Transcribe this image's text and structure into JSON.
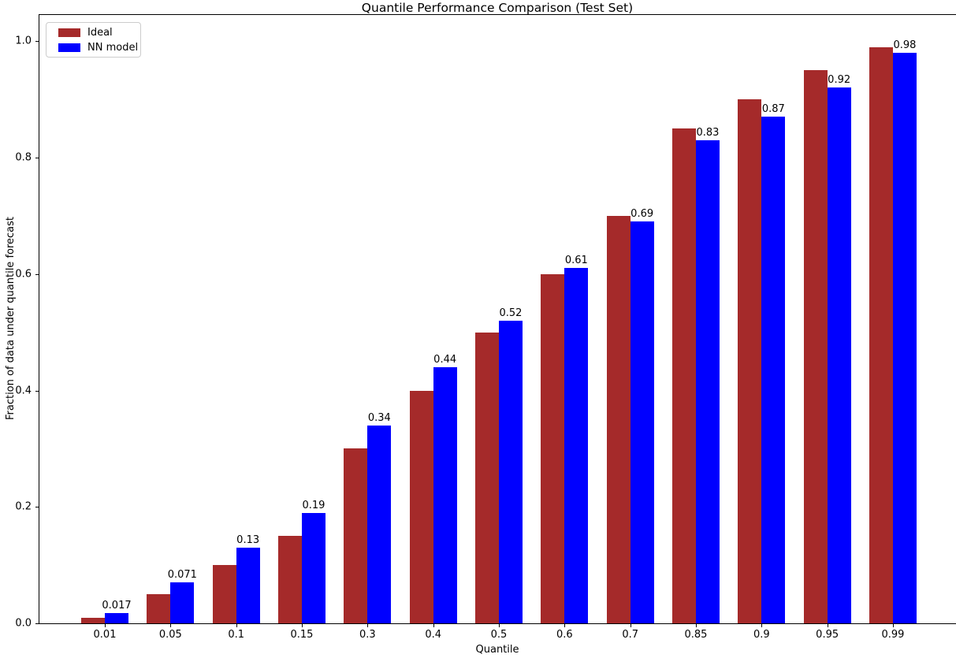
{
  "chart_data": {
    "type": "bar",
    "title": "Quantile Performance Comparison (Test Set)",
    "xlabel": "Quantile",
    "ylabel": "Fraction of data under quantile forecast",
    "categories": [
      "0.01",
      "0.05",
      "0.1",
      "0.15",
      "0.3",
      "0.4",
      "0.5",
      "0.6",
      "0.7",
      "0.85",
      "0.9",
      "0.95",
      "0.99"
    ],
    "series": [
      {
        "name": "Ideal",
        "color": "#a52a2a",
        "values": [
          0.01,
          0.05,
          0.1,
          0.15,
          0.3,
          0.4,
          0.5,
          0.6,
          0.7,
          0.85,
          0.9,
          0.95,
          0.99
        ]
      },
      {
        "name": "NN model",
        "color": "#0000ff",
        "values": [
          0.017,
          0.071,
          0.13,
          0.19,
          0.34,
          0.44,
          0.52,
          0.61,
          0.69,
          0.83,
          0.87,
          0.92,
          0.98
        ]
      }
    ],
    "bar_labels": [
      "0.017",
      "0.071",
      "0.13",
      "0.19",
      "0.34",
      "0.44",
      "0.52",
      "0.61",
      "0.69",
      "0.83",
      "0.87",
      "0.92",
      "0.98"
    ],
    "yticks": [
      "0.0",
      "0.2",
      "0.4",
      "0.6",
      "0.8",
      "1.0"
    ],
    "ylim": [
      0,
      1.046
    ],
    "grid": false,
    "legend_position": "upper left"
  }
}
